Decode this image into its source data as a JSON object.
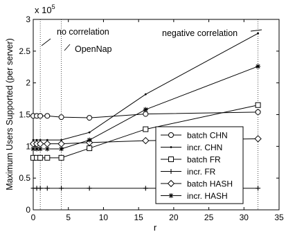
{
  "chart_data": {
    "type": "line",
    "xlabel": "r",
    "ylabel": "Maximum Users Supported (per server)",
    "y_multiplier_label": "x 10",
    "y_multiplier_exponent": "5",
    "xlim": [
      0,
      35
    ],
    "ylim": [
      0,
      300000
    ],
    "x_ticks": [
      0,
      5,
      10,
      15,
      20,
      25,
      30,
      35
    ],
    "y_ticks": [
      0,
      50000,
      100000,
      150000,
      200000,
      250000,
      300000
    ],
    "y_tick_labels": [
      "0",
      "0.5",
      "1",
      "1.5",
      "2",
      "2.5",
      "3"
    ],
    "x_tick_labels": [
      "0",
      "5",
      "10",
      "15",
      "20",
      "25",
      "30",
      "35"
    ],
    "vlines": [
      1,
      4,
      32
    ],
    "annotations": [
      {
        "text": "no correlation",
        "x": 1,
        "y": 265000
      },
      {
        "text": "OpenNap",
        "x": 4,
        "y": 240000
      },
      {
        "text": "negative correlation",
        "x": 32,
        "y": 280000
      }
    ],
    "legend_position": "lower-right",
    "series": [
      {
        "name": "batch CHN",
        "marker": "circle",
        "x": [
          0,
          0.5,
          1,
          2,
          4,
          8,
          16,
          32
        ],
        "y": [
          148000,
          148000,
          148000,
          148000,
          146000,
          145000,
          151000,
          154000
        ]
      },
      {
        "name": "incr. CHN",
        "marker": "dot",
        "x": [
          0,
          0.5,
          1,
          2,
          4,
          8,
          16,
          32
        ],
        "y": [
          110000,
          110000,
          110000,
          110000,
          110000,
          122000,
          182000,
          278000
        ]
      },
      {
        "name": "batch FR",
        "marker": "square",
        "x": [
          0,
          0.5,
          1,
          2,
          4,
          8,
          16,
          32
        ],
        "y": [
          82000,
          82000,
          82000,
          82000,
          82000,
          97000,
          127000,
          165000
        ]
      },
      {
        "name": "incr. FR",
        "marker": "plus",
        "x": [
          0,
          0.5,
          1,
          2,
          4,
          8,
          16,
          32
        ],
        "y": [
          34000,
          34000,
          34000,
          34000,
          34000,
          34000,
          34000,
          34000
        ]
      },
      {
        "name": "batch HASH",
        "marker": "diamond",
        "x": [
          0,
          0.5,
          1,
          2,
          4,
          8,
          16,
          32
        ],
        "y": [
          104000,
          104000,
          104000,
          104000,
          104000,
          106000,
          109000,
          112000
        ]
      },
      {
        "name": "incr. HASH",
        "marker": "star",
        "x": [
          0,
          0.5,
          1,
          2,
          4,
          8,
          16,
          32
        ],
        "y": [
          96000,
          96000,
          96000,
          96000,
          96000,
          110000,
          158000,
          226000
        ]
      }
    ]
  }
}
